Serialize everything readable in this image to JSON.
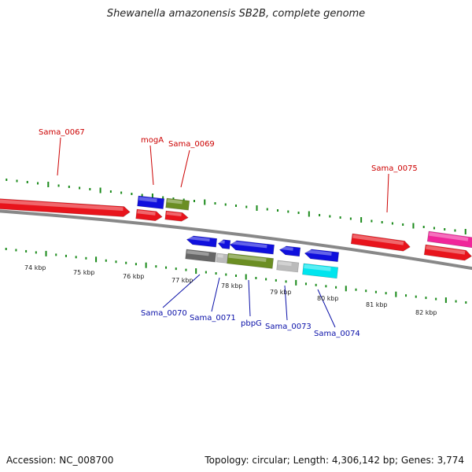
{
  "title": "Shewanella amazonensis SB2B, complete genome",
  "footer": {
    "accession": "Accession: NC_008700",
    "summary": "Topology: circular; Length: 4,306,142 bp; Genes: 3,774"
  },
  "colors": {
    "top_label": "#cc0000",
    "bottom_label": "#0a10a8",
    "tick": "#1a8a1a",
    "backbone": "#888888"
  },
  "ticks": [
    {
      "label": "74 kbp"
    },
    {
      "label": "75 kbp"
    },
    {
      "label": "76 kbp"
    },
    {
      "label": "77 kbp"
    },
    {
      "label": "78 kbp"
    },
    {
      "label": "79 kbp"
    },
    {
      "label": "80 kbp"
    },
    {
      "label": "81 kbp"
    },
    {
      "label": "82 kbp"
    }
  ],
  "genes_top": [
    {
      "name": "Sama_0067",
      "color": "#e8141c"
    },
    {
      "name": "mogA",
      "color": "#1010dd"
    },
    {
      "name": "Sama_0069",
      "color": "#6b8e23"
    },
    {
      "name": "Sama_0075",
      "color": "#e8141c"
    }
  ],
  "genes_bottom": [
    {
      "name": "Sama_0070",
      "color": "#666666"
    },
    {
      "name": "Sama_0071",
      "color": "#bbbbbb"
    },
    {
      "name": "pbpG",
      "color": "#6b8e23"
    },
    {
      "name": "Sama_0073",
      "color": "#bbbbbb"
    },
    {
      "name": "Sama_0074",
      "color": "#00e5ee"
    }
  ]
}
